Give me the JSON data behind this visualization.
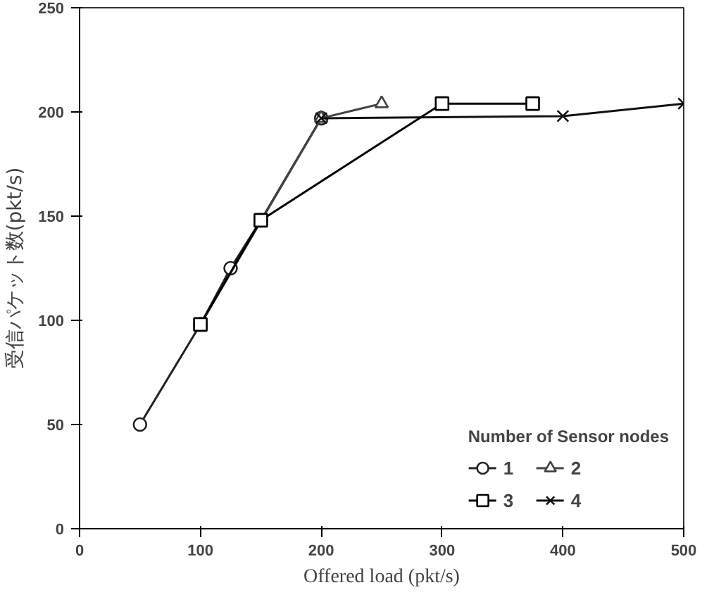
{
  "chart_data": {
    "type": "line",
    "xlabel": "Offered load (pkt/s)",
    "ylabel": "受信パケット数(pkt/s)",
    "legend_title": "Number of Sensor nodes",
    "series": [
      {
        "name": "1",
        "color": "#222222",
        "marker": "circle",
        "x": [
          50,
          100,
          125,
          150,
          200
        ],
        "values": [
          50,
          98,
          125,
          148,
          197
        ]
      },
      {
        "name": "2",
        "color": "#444444",
        "marker": "triangle",
        "x": [
          100,
          200,
          250
        ],
        "values": [
          98,
          197,
          204
        ]
      },
      {
        "name": "3",
        "color": "#000000",
        "marker": "square",
        "x": [
          100,
          150,
          300,
          375
        ],
        "values": [
          98,
          148,
          204,
          204
        ]
      },
      {
        "name": "4",
        "color": "#111111",
        "marker": "cross",
        "x": [
          200,
          400,
          500
        ],
        "values": [
          197,
          198,
          204
        ]
      }
    ],
    "xlim": [
      0,
      500
    ],
    "xticks": [
      0,
      100,
      200,
      300,
      400,
      500
    ],
    "ylim": [
      0,
      250
    ],
    "yticks": [
      0,
      50,
      100,
      150,
      200,
      250
    ],
    "grid": false,
    "legend": "bottom right",
    "line_style": "solid"
  }
}
